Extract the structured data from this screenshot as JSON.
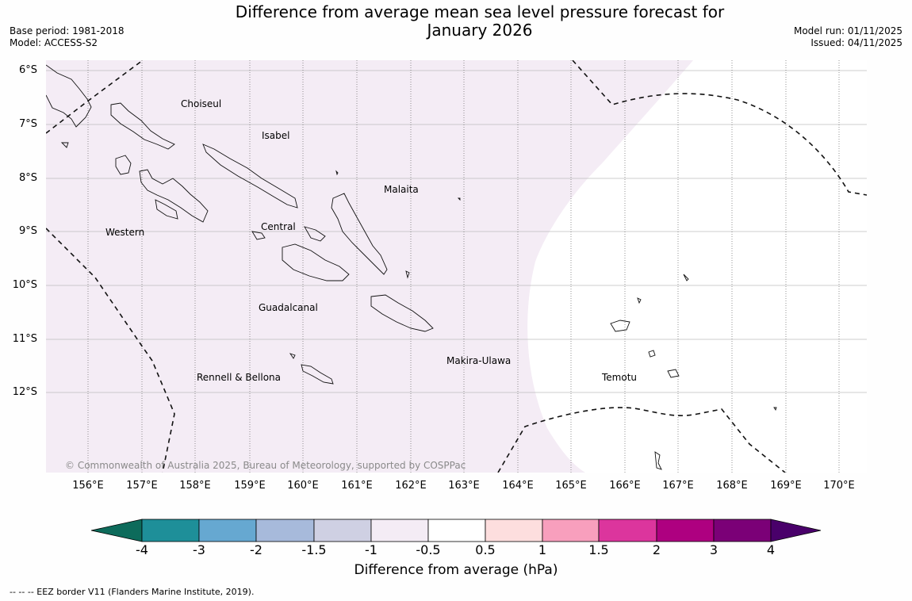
{
  "title": {
    "line1": "Difference from average mean sea level pressure forecast for",
    "line2": "January 2026"
  },
  "meta": {
    "base_period": "Base period: 1981-2018",
    "model": "Model: ACCESS-S2",
    "model_run": "Model run: 01/11/2025",
    "issued": "Issued: 04/11/2025"
  },
  "map": {
    "region_labels": [
      {
        "name": "Choiseul"
      },
      {
        "name": "Isabel"
      },
      {
        "name": "Malaita"
      },
      {
        "name": "Western"
      },
      {
        "name": "Central"
      },
      {
        "name": "Guadalcanal"
      },
      {
        "name": "Makira-Ulawa"
      },
      {
        "name": "Rennell & Bellona"
      },
      {
        "name": "Temotu"
      }
    ],
    "lat_labels": [
      "6°S",
      "7°S",
      "8°S",
      "9°S",
      "10°S",
      "11°S",
      "12°S"
    ],
    "lon_labels": [
      "156°E",
      "157°E",
      "158°E",
      "159°E",
      "160°E",
      "161°E",
      "162°E",
      "163°E",
      "164°E",
      "165°E",
      "166°E",
      "167°E",
      "168°E",
      "169°E",
      "170°E"
    ],
    "copyright": "© Commonwealth of Australia 2025, Bureau of Meteorology, supported by COSPPac",
    "shaded_category": "-1 to -0.5 hPa",
    "shaded_color": "#f4ecf5"
  },
  "colorbar": {
    "colors": [
      "#0d6b5b",
      "#1e8f99",
      "#66a8d1",
      "#a7badb",
      "#cfd0e3",
      "#f4ecf5",
      "#ffffff",
      "#fddede",
      "#f89fbd",
      "#dc359d",
      "#ae0080",
      "#7b0077",
      "#49006a"
    ],
    "ticks": [
      "-4",
      "-3",
      "-2",
      "-1.5",
      "-1",
      "-0.5",
      "0.5",
      "1",
      "1.5",
      "2",
      "3",
      "4"
    ],
    "label": "Difference from average (hPa)"
  },
  "footnote": "--  --  -- EEZ border V11 (Flanders Marine Institute, 2019)."
}
